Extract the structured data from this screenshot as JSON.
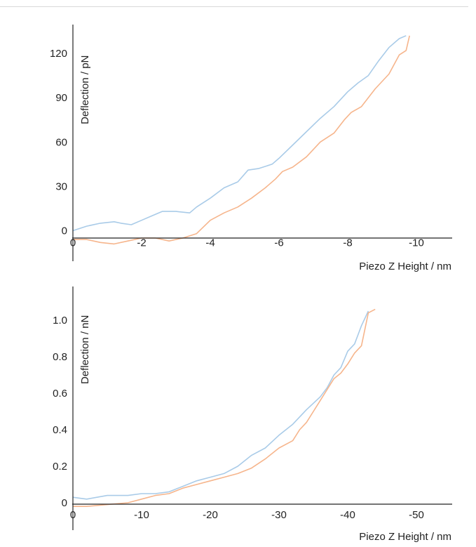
{
  "colors": {
    "blue": "#a9cbe8",
    "orange": "#f6b58c",
    "axis": "#222222"
  },
  "chart_data": [
    {
      "type": "line",
      "title": "",
      "xlabel": "Piezo Z Height / nm",
      "ylabel": "Deflection / pN",
      "xlim": [
        0,
        -11
      ],
      "ylim": [
        -15,
        140
      ],
      "xticks": [
        0,
        -2,
        -4,
        -6,
        -8,
        -10
      ],
      "xtick_labels": [
        "0",
        "-2",
        "-4",
        "-6",
        "-8",
        "-10"
      ],
      "yticks": [
        0,
        30,
        60,
        90,
        120
      ],
      "ytick_labels": [
        "0",
        "30",
        "60",
        "90",
        "120"
      ],
      "grid": false,
      "legend": "none",
      "series": [
        {
          "color": "#a9cbe8",
          "x": [
            0,
            -0.4,
            -0.8,
            -1.2,
            -1.4,
            -1.7,
            -2.0,
            -2.3,
            -2.6,
            -3.0,
            -3.4,
            -3.6,
            -4.0,
            -4.4,
            -4.8,
            -5.1,
            -5.4,
            -5.8,
            -6.0,
            -6.4,
            -6.8,
            -7.2,
            -7.6,
            -8.0,
            -8.3,
            -8.6,
            -8.9,
            -9.2,
            -9.5,
            -9.7
          ],
          "y": [
            0,
            3,
            5,
            6,
            5,
            4,
            7,
            10,
            13,
            13,
            12,
            16,
            22,
            29,
            33,
            41,
            42,
            45,
            49,
            58,
            67,
            76,
            84,
            94,
            100,
            105,
            115,
            124,
            130,
            132
          ]
        },
        {
          "color": "#f6b58c",
          "x": [
            0,
            -0.4,
            -0.8,
            -1.2,
            -1.6,
            -2.0,
            -2.4,
            -2.8,
            -3.2,
            -3.6,
            -4.0,
            -4.4,
            -4.8,
            -5.2,
            -5.6,
            -5.9,
            -6.1,
            -6.4,
            -6.8,
            -7.2,
            -7.6,
            -7.9,
            -8.1,
            -8.4,
            -8.8,
            -9.2,
            -9.5,
            -9.7,
            -9.8
          ],
          "y": [
            -6,
            -6,
            -8,
            -9,
            -7,
            -5,
            -5,
            -7,
            -5,
            -2,
            7,
            12,
            16,
            22,
            29,
            35,
            40,
            43,
            50,
            60,
            66,
            75,
            80,
            84,
            96,
            106,
            119,
            122,
            132
          ]
        }
      ]
    },
    {
      "type": "line",
      "title": "",
      "xlabel": "Piezo Z Height / nm",
      "ylabel": "Deflection / nN",
      "xlim": [
        0,
        -55
      ],
      "ylim": [
        -0.05,
        1.15
      ],
      "xticks": [
        0,
        -10,
        -20,
        -30,
        -40,
        -50
      ],
      "xtick_labels": [
        "0",
        "-10",
        "-20",
        "-30",
        "-40",
        "-50"
      ],
      "yticks": [
        0,
        0.2,
        0.4,
        0.6,
        0.8,
        1.0
      ],
      "ytick_labels": [
        "0",
        "0.2",
        "0.4",
        "0.6",
        "0.8",
        "1.0"
      ],
      "grid": false,
      "legend": "none",
      "series": [
        {
          "color": "#a9cbe8",
          "x": [
            0,
            -2,
            -5,
            -8,
            -10,
            -12,
            -14,
            -16,
            -18,
            -20,
            -22,
            -24,
            -26,
            -28,
            -30,
            -32,
            -34,
            -36,
            -37,
            -38,
            -39,
            -40,
            -41,
            -42,
            -43
          ],
          "y": [
            0.03,
            0.02,
            0.04,
            0.04,
            0.05,
            0.05,
            0.06,
            0.09,
            0.12,
            0.14,
            0.16,
            0.2,
            0.26,
            0.3,
            0.37,
            0.43,
            0.51,
            0.58,
            0.63,
            0.7,
            0.74,
            0.83,
            0.87,
            0.97,
            1.05
          ]
        },
        {
          "color": "#f6b58c",
          "x": [
            0,
            -2,
            -5,
            -8,
            -10,
            -12,
            -14,
            -16,
            -18,
            -20,
            -22,
            -24,
            -26,
            -28,
            -30,
            -32,
            -33,
            -34,
            -35,
            -36,
            -37,
            -38,
            -39,
            -40,
            -41,
            -42,
            -43,
            -44
          ],
          "y": [
            -0.02,
            -0.02,
            -0.01,
            0.0,
            0.02,
            0.04,
            0.05,
            0.08,
            0.1,
            0.12,
            0.14,
            0.16,
            0.19,
            0.24,
            0.3,
            0.34,
            0.4,
            0.44,
            0.5,
            0.56,
            0.62,
            0.68,
            0.71,
            0.76,
            0.82,
            0.86,
            1.04,
            1.06
          ]
        }
      ]
    }
  ]
}
